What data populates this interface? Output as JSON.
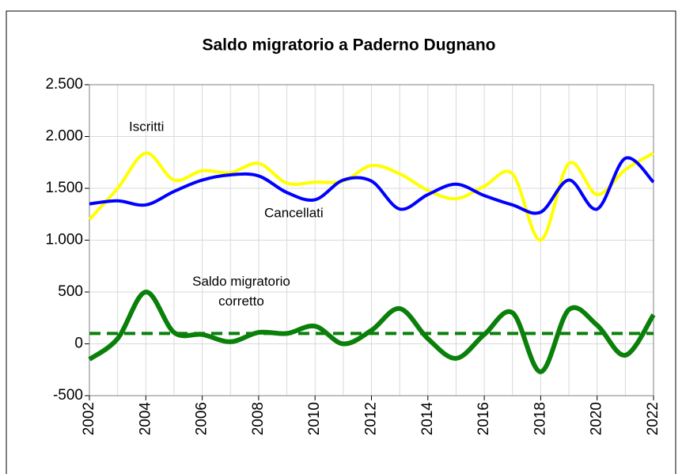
{
  "chart_data": {
    "type": "line",
    "title": "Saldo migratorio a Paderno Dugnano",
    "x": [
      2002,
      2003,
      2004,
      2005,
      2006,
      2007,
      2008,
      2009,
      2010,
      2011,
      2012,
      2013,
      2014,
      2015,
      2016,
      2017,
      2018,
      2019,
      2020,
      2021,
      2022
    ],
    "series": [
      {
        "name": "Iscritti",
        "color": "#ffff00",
        "values": [
          1200,
          1500,
          1840,
          1580,
          1670,
          1650,
          1740,
          1550,
          1560,
          1570,
          1720,
          1640,
          1480,
          1400,
          1520,
          1640,
          1000,
          1740,
          1440,
          1680,
          1840
        ]
      },
      {
        "name": "Cancellati",
        "color": "#0000ff",
        "values": [
          1350,
          1380,
          1340,
          1470,
          1580,
          1630,
          1620,
          1460,
          1390,
          1580,
          1570,
          1300,
          1440,
          1540,
          1430,
          1340,
          1270,
          1580,
          1300,
          1790,
          1560
        ]
      },
      {
        "name": "Saldo migratorio corretto",
        "color": "#0a800a",
        "values": [
          -150,
          50,
          500,
          110,
          90,
          20,
          110,
          100,
          170,
          0,
          130,
          340,
          50,
          -140,
          90,
          300,
          -270,
          330,
          180,
          -110,
          280
        ]
      }
    ],
    "reference_line": {
      "value": 100,
      "color": "#0a800a"
    },
    "xlim": [
      2002,
      2022
    ],
    "xticks": [
      2002,
      2004,
      2006,
      2008,
      2010,
      2012,
      2014,
      2016,
      2018,
      2020,
      2022
    ],
    "xminorticks": [
      2003,
      2005,
      2007,
      2009,
      2011,
      2013,
      2015,
      2017,
      2019,
      2021
    ],
    "ylim": [
      -500,
      2500
    ],
    "yticks": [
      {
        "value": -500,
        "label": "-500"
      },
      0,
      500,
      {
        "value": 1000,
        "label": "1.000"
      },
      {
        "value": 1500,
        "label": "1.500"
      },
      {
        "value": 2000,
        "label": "2.000"
      },
      {
        "value": 2500,
        "label": "2.500"
      }
    ],
    "grid": true
  }
}
